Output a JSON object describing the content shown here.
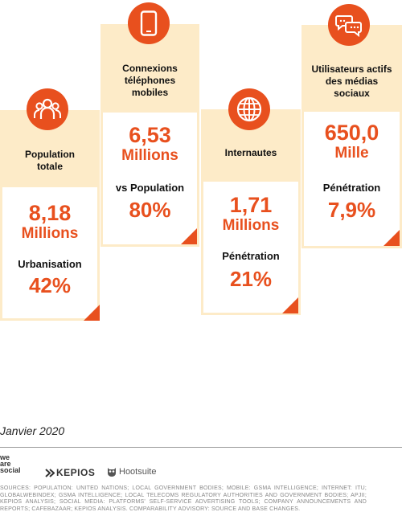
{
  "cards": [
    {
      "label_lines": [
        "Population",
        "totale"
      ],
      "value_line1": "8,18",
      "value_line2": "Millions",
      "sub_label": "Urbanisation",
      "sub_value": "42%",
      "icon": "people-icon"
    },
    {
      "label_lines": [
        "Connexions",
        "téléphones",
        "mobiles"
      ],
      "value_line1": "6,53",
      "value_line2": "Millions",
      "sub_label": "vs Population",
      "sub_value": "80%",
      "icon": "mobile-phone-icon"
    },
    {
      "label_lines": [
        "Internautes"
      ],
      "value_line1": "1,71",
      "value_line2": "Millions",
      "sub_label": "Pénétration",
      "sub_value": "21%",
      "icon": "globe-icon"
    },
    {
      "label_lines": [
        "Utilisateurs actifs",
        "des médias",
        "sociaux"
      ],
      "value_line1": "650,0",
      "value_line2": "Mille",
      "sub_label": "Pénétration",
      "sub_value": "7,9%",
      "icon": "chat-bubbles-icon"
    }
  ],
  "date": "Janvier 2020",
  "logos": {
    "wearesocial": [
      "we",
      "are",
      "social"
    ],
    "kepios": "KEPIOS",
    "hootsuite": "Hootsuite"
  },
  "sources": "SOURCES: POPULATION: UNITED NATIONS; LOCAL GOVERNMENT BODIES; MOBILE: GSMA INTELLIGENCE; INTERNET: ITU; GLOBALWEBINDEX; GSMA INTELLIGENCE; LOCAL TELECOMS REGULATORY AUTHORITIES AND GOVERNMENT BODIES; APJII; KEPIOS ANALYSIS; SOCIAL MEDIA: PLATFORMS' SELF-SERVICE ADVERTISING TOOLS; COMPANY ANNOUNCEMENTS AND REPORTS; CAFEBAZAAR; KEPIOS ANALYSIS. COMPARABILITY ADVISORY: SOURCE AND BASE CHANGES.",
  "colors": {
    "accent": "#e8501e",
    "cream": "#fdebc8",
    "text": "#111111"
  }
}
